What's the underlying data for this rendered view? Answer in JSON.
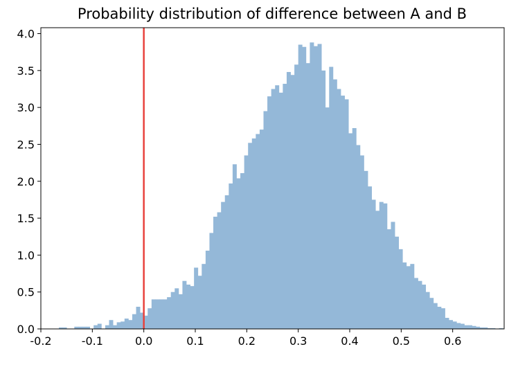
{
  "chart_data": {
    "type": "histogram",
    "title": "Probability distribution of difference between A and B",
    "xlabel": "",
    "ylabel": "",
    "xlim": [
      -0.2,
      0.7
    ],
    "ylim": [
      0,
      4.08
    ],
    "x_ticks": [
      "-0.2",
      "-0.1",
      "0.0",
      "0.1",
      "0.2",
      "0.3",
      "0.4",
      "0.5",
      "0.6"
    ],
    "x_tick_values": [
      -0.2,
      -0.1,
      0.0,
      0.1,
      0.2,
      0.3,
      0.4,
      0.5,
      0.6
    ],
    "y_ticks": [
      "0.0",
      "0.5",
      "1.0",
      "1.5",
      "2.0",
      "2.5",
      "3.0",
      "3.5",
      "4.0"
    ],
    "y_tick_values": [
      0,
      0.5,
      1.0,
      1.5,
      2.0,
      2.5,
      3.0,
      3.5,
      4.0
    ],
    "grid": false,
    "bar_color": "#94b8d8",
    "reference_line": {
      "x": 0.0,
      "color": "#e8413b"
    },
    "bins": {
      "start": -0.165,
      "width": 0.0075,
      "heights": [
        0.02,
        0.02,
        0.0,
        0.0,
        0.03,
        0.03,
        0.03,
        0.03,
        0.0,
        0.05,
        0.07,
        0.0,
        0.05,
        0.12,
        0.05,
        0.09,
        0.1,
        0.14,
        0.12,
        0.2,
        0.3,
        0.22,
        0.18,
        0.28,
        0.4,
        0.4,
        0.4,
        0.4,
        0.43,
        0.5,
        0.55,
        0.47,
        0.65,
        0.6,
        0.58,
        0.83,
        0.72,
        0.88,
        1.06,
        1.3,
        1.52,
        1.58,
        1.72,
        1.81,
        1.97,
        2.23,
        2.04,
        2.11,
        2.35,
        2.52,
        2.58,
        2.64,
        2.7,
        2.95,
        3.15,
        3.25,
        3.3,
        3.2,
        3.32,
        3.48,
        3.44,
        3.58,
        3.85,
        3.82,
        3.6,
        3.88,
        3.83,
        3.86,
        3.5,
        3.0,
        3.55,
        3.38,
        3.25,
        3.16,
        3.11,
        2.65,
        2.72,
        2.49,
        2.35,
        2.14,
        1.93,
        1.75,
        1.6,
        1.72,
        1.7,
        1.35,
        1.45,
        1.25,
        1.08,
        0.9,
        0.85,
        0.88,
        0.69,
        0.65,
        0.6,
        0.5,
        0.42,
        0.35,
        0.3,
        0.28,
        0.15,
        0.12,
        0.1,
        0.08,
        0.07,
        0.05,
        0.05,
        0.04,
        0.03,
        0.02,
        0.02,
        0.01,
        0.01,
        0.0,
        0.01
      ]
    }
  }
}
